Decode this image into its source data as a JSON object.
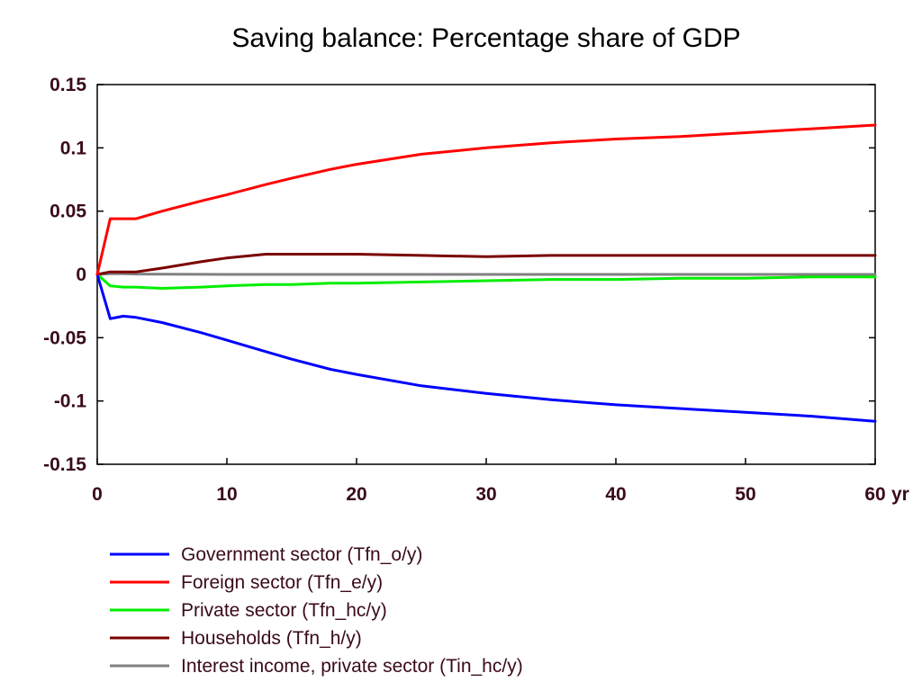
{
  "chart_data": {
    "type": "line",
    "title": "Saving balance: Percentage share of GDP",
    "xlabel": "",
    "ylabel": "",
    "x_unit_label": "yr",
    "xlim": [
      0,
      60
    ],
    "ylim": [
      -0.15,
      0.15
    ],
    "x_ticks": [
      0,
      10,
      20,
      30,
      40,
      50,
      60
    ],
    "x_tick_labels": [
      "0",
      "10",
      "20",
      "30",
      "40",
      "50",
      "60"
    ],
    "y_ticks": [
      0.15,
      0.1,
      0.05,
      0,
      -0.05,
      -0.1,
      -0.15
    ],
    "y_tick_labels": [
      "0.15",
      "0.1",
      "0.05",
      "0",
      "-0.05",
      "-0.1",
      "-0.15"
    ],
    "grid": false,
    "legend_position": "bottom",
    "x": [
      0,
      1,
      2,
      3,
      5,
      8,
      10,
      13,
      15,
      18,
      20,
      25,
      30,
      35,
      40,
      45,
      50,
      55,
      60
    ],
    "series": [
      {
        "name": "Government sector (Tfn_o/y)",
        "color": "#0000ff",
        "values": [
          0,
          -0.035,
          -0.033,
          -0.034,
          -0.038,
          -0.046,
          -0.052,
          -0.061,
          -0.067,
          -0.075,
          -0.079,
          -0.088,
          -0.094,
          -0.099,
          -0.103,
          -0.106,
          -0.109,
          -0.112,
          -0.116
        ]
      },
      {
        "name": "Foreign sector (Tfn_e/y)",
        "color": "#ff0000",
        "values": [
          0,
          0.044,
          0.044,
          0.044,
          0.05,
          0.058,
          0.063,
          0.071,
          0.076,
          0.083,
          0.087,
          0.095,
          0.1,
          0.104,
          0.107,
          0.109,
          0.112,
          0.115,
          0.118
        ]
      },
      {
        "name": "Private sector (Tfn_hc/y)",
        "color": "#00ee00",
        "values": [
          0,
          -0.009,
          -0.01,
          -0.01,
          -0.011,
          -0.01,
          -0.009,
          -0.008,
          -0.008,
          -0.007,
          -0.007,
          -0.006,
          -0.005,
          -0.004,
          -0.004,
          -0.003,
          -0.003,
          -0.002,
          -0.002
        ]
      },
      {
        "name": "Households (Tfn_h/y)",
        "color": "#7a0000",
        "values": [
          0,
          0.002,
          0.002,
          0.002,
          0.005,
          0.01,
          0.013,
          0.016,
          0.016,
          0.016,
          0.016,
          0.015,
          0.014,
          0.015,
          0.015,
          0.015,
          0.015,
          0.015,
          0.015
        ]
      },
      {
        "name": "Interest income, private sector (Tin_hc/y)",
        "color": "#808080",
        "values": [
          0,
          0.0005,
          0.0005,
          0.0003,
          0.0002,
          0.0001,
          0,
          0,
          0,
          0,
          0,
          0,
          0,
          0,
          0,
          0,
          0,
          0,
          0
        ]
      }
    ]
  }
}
